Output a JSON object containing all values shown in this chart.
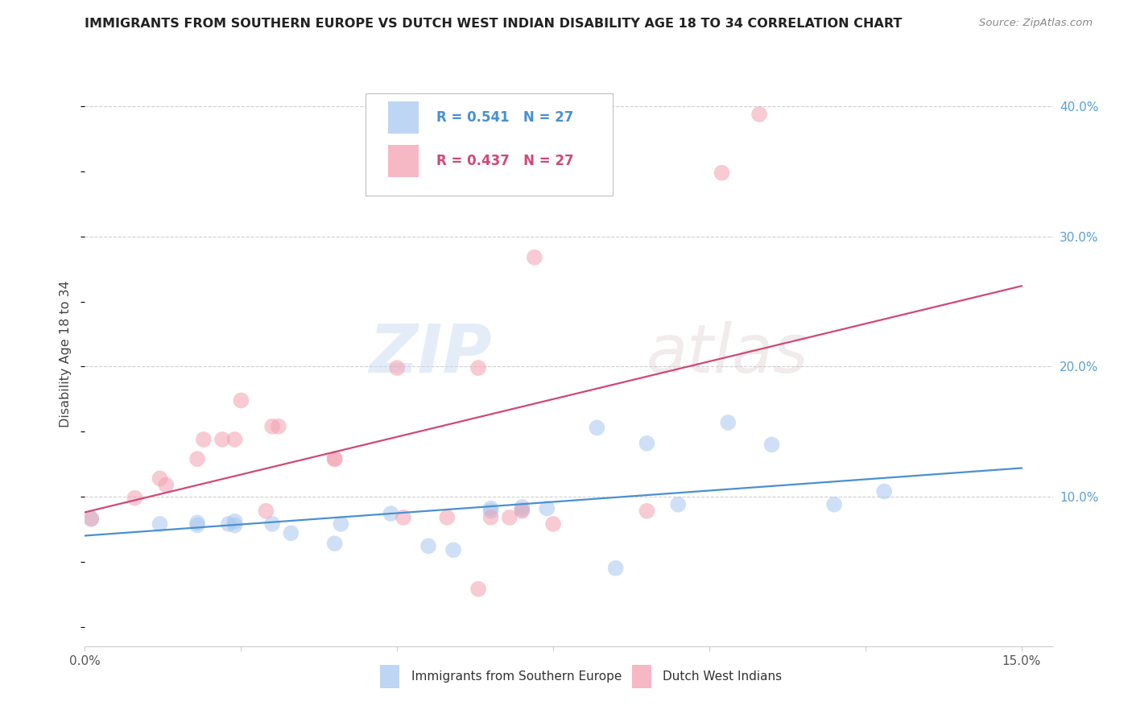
{
  "title": "IMMIGRANTS FROM SOUTHERN EUROPE VS DUTCH WEST INDIAN DISABILITY AGE 18 TO 34 CORRELATION CHART",
  "source": "Source: ZipAtlas.com",
  "ylabel_label": "Disability Age 18 to 34",
  "legend_label1": "Immigrants from Southern Europe",
  "legend_label2": "Dutch West Indians",
  "R1": "0.541",
  "N1": "27",
  "R2": "0.437",
  "N2": "27",
  "watermark_zip": "ZIP",
  "watermark_atlas": "atlas",
  "xlim": [
    0.0,
    0.155
  ],
  "ylim": [
    -0.015,
    0.435
  ],
  "color_blue": "#a8c8f0",
  "color_pink": "#f4a0b0",
  "line_color_blue": "#4a90d0",
  "line_color_pink": "#d04878",
  "blue_scatter_x": [
    0.001,
    0.012,
    0.018,
    0.018,
    0.023,
    0.024,
    0.024,
    0.03,
    0.033,
    0.04,
    0.041,
    0.049,
    0.055,
    0.059,
    0.065,
    0.065,
    0.07,
    0.07,
    0.074,
    0.082,
    0.085,
    0.09,
    0.095,
    0.103,
    0.11,
    0.12,
    0.128
  ],
  "blue_scatter_y": [
    0.083,
    0.079,
    0.078,
    0.08,
    0.079,
    0.078,
    0.081,
    0.079,
    0.072,
    0.064,
    0.079,
    0.087,
    0.062,
    0.059,
    0.091,
    0.089,
    0.092,
    0.09,
    0.091,
    0.153,
    0.045,
    0.141,
    0.094,
    0.157,
    0.14,
    0.094,
    0.104
  ],
  "pink_scatter_x": [
    0.001,
    0.008,
    0.012,
    0.013,
    0.018,
    0.019,
    0.022,
    0.024,
    0.025,
    0.029,
    0.03,
    0.031,
    0.04,
    0.04,
    0.05,
    0.051,
    0.058,
    0.063,
    0.063,
    0.065,
    0.068,
    0.07,
    0.072,
    0.075,
    0.09,
    0.102,
    0.108
  ],
  "pink_scatter_y": [
    0.083,
    0.099,
    0.114,
    0.109,
    0.129,
    0.144,
    0.144,
    0.144,
    0.174,
    0.089,
    0.154,
    0.154,
    0.129,
    0.129,
    0.199,
    0.084,
    0.084,
    0.199,
    0.029,
    0.084,
    0.084,
    0.089,
    0.284,
    0.079,
    0.089,
    0.349,
    0.394
  ],
  "right_yticks": [
    0.1,
    0.2,
    0.3,
    0.4
  ],
  "right_ytick_labels": [
    "10.0%",
    "20.0%",
    "30.0%",
    "40.0%"
  ],
  "xtick_positions": [
    0.0,
    0.025,
    0.05,
    0.075,
    0.1,
    0.125,
    0.15
  ],
  "xtick_labels": [
    "0.0%",
    "",
    "",
    "",
    "",
    "",
    "15.0%"
  ],
  "blue_line_x0": 0.0,
  "blue_line_x1": 0.15,
  "blue_line_y0": 0.07,
  "blue_line_y1": 0.122,
  "pink_line_x0": 0.0,
  "pink_line_x1": 0.15,
  "pink_line_y0": 0.088,
  "pink_line_y1": 0.262
}
